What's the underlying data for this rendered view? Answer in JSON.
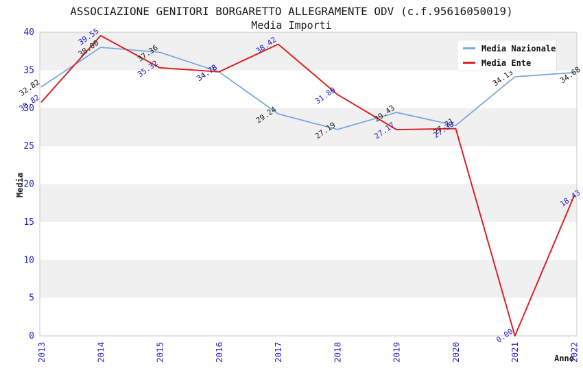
{
  "title": "ASSOCIAZIONE GENITORI BORGARETTO ALLEGRAMENTE ODV (c.f.95616050019)",
  "subtitle": "Media Importi",
  "colors": {
    "nazionale_line": "#7da8db",
    "ente_line": "#de2121",
    "tick_text": "#2121cc",
    "nazionale_label_text": "#1b1b1b",
    "ente_label_text": "#2323c4",
    "band_gray": "#f0f0f0",
    "plot_border": "#c9c9c9",
    "black_text": "#1b1b1b"
  },
  "legend": {
    "items": [
      {
        "label": "Media Nazionale",
        "color": "#7da8db"
      },
      {
        "label": "Media Ente",
        "color": "#de2121"
      }
    ]
  },
  "chart_data": {
    "type": "line",
    "title": "ASSOCIAZIONE GENITORI BORGARETTO ALLEGRAMENTE ODV (c.f.95616050019)",
    "subtitle": "Media Importi",
    "xlabel": "Anno",
    "ylabel": "Media",
    "x": [
      "2013",
      "2014",
      "2015",
      "2016",
      "2017",
      "2018",
      "2019",
      "2020",
      "2021",
      "2022"
    ],
    "ylim": [
      0,
      40
    ],
    "ytick_step": 5,
    "yticks": [
      "0",
      "5",
      "10",
      "15",
      "20",
      "25",
      "30",
      "35",
      "40"
    ],
    "grid": "alternating-horizontal-bands",
    "legend_position": "top-right",
    "series": [
      {
        "name": "Media Nazionale",
        "color": "#7da8db",
        "label_color": "#1b1b1b",
        "values": [
          32.82,
          38.0,
          37.36,
          34.78,
          29.24,
          27.19,
          29.43,
          27.71,
          34.13,
          34.68
        ],
        "labels": [
          "32.82",
          "38.00",
          "37.36",
          "34.78",
          "29.24",
          "27.19",
          "29.43",
          "27.71",
          "34.13",
          "34.68"
        ]
      },
      {
        "name": "Media Ente",
        "color": "#de2121",
        "label_color": "#2323c4",
        "values": [
          30.82,
          39.55,
          35.32,
          34.78,
          38.42,
          31.8,
          27.17,
          27.3,
          0.0,
          18.43
        ],
        "labels": [
          "30.82",
          "39.55",
          "35.32",
          "34.78",
          "38.42",
          "31.80",
          "27.17",
          "27.30",
          "0.00",
          "18.43"
        ]
      }
    ]
  }
}
